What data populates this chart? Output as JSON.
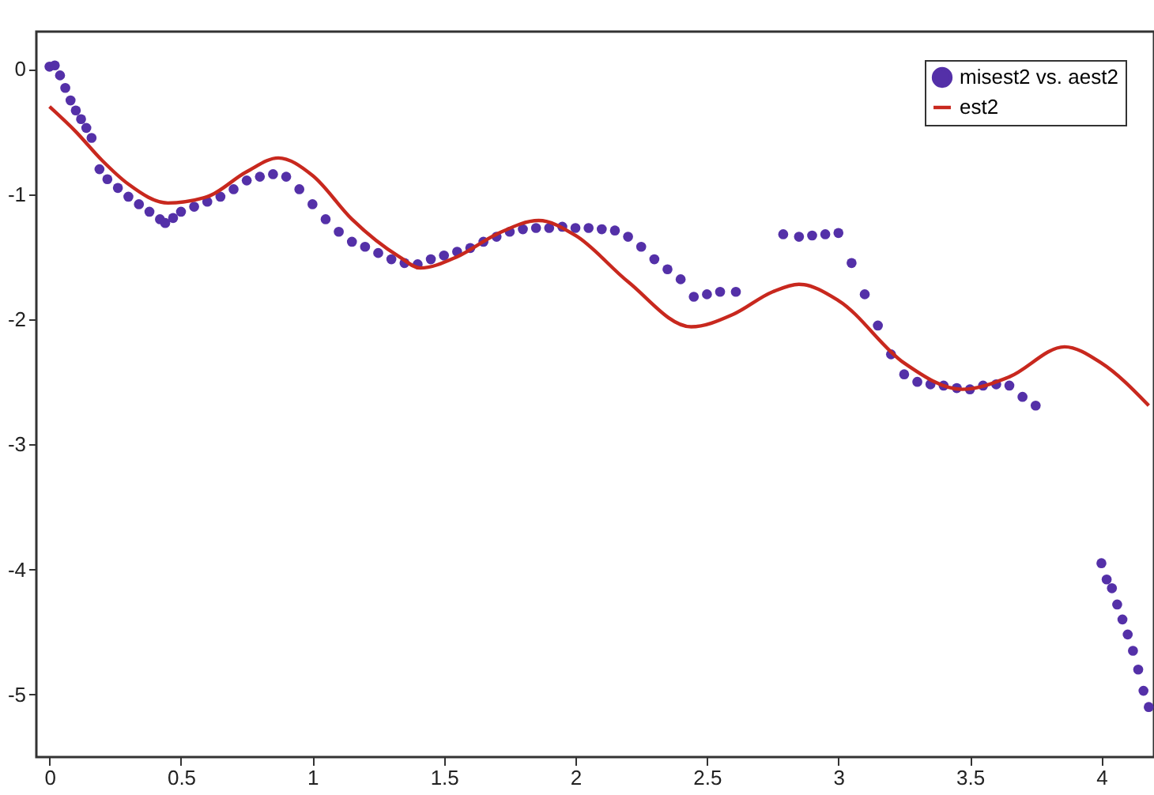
{
  "chart_data": {
    "type": "scatter",
    "xlim": [
      -0.05,
      4.2
    ],
    "ylim": [
      -5.5,
      0.3
    ],
    "xticks": [
      0,
      0.5,
      1,
      1.5,
      2,
      2.5,
      3,
      3.5,
      4
    ],
    "yticks": [
      0,
      -1,
      -2,
      -3,
      -4,
      -5
    ],
    "grid": false,
    "legend": "top right",
    "series": [
      {
        "name": "misest2 vs. aest2",
        "marker": "circle",
        "color": "#5430a8",
        "x": [
          0,
          0.02,
          0.04,
          0.06,
          0.08,
          0.1,
          0.12,
          0.14,
          0.16,
          0.19,
          0.22,
          0.26,
          0.3,
          0.34,
          0.38,
          0.42,
          0.44,
          0.47,
          0.5,
          0.55,
          0.6,
          0.65,
          0.7,
          0.75,
          0.8,
          0.85,
          0.9,
          0.95,
          1.0,
          1.05,
          1.1,
          1.15,
          1.2,
          1.25,
          1.3,
          1.35,
          1.4,
          1.45,
          1.5,
          1.55,
          1.6,
          1.65,
          1.7,
          1.75,
          1.8,
          1.85,
          1.9,
          1.95,
          2.0,
          2.05,
          2.1,
          2.15,
          2.2,
          2.25,
          2.3,
          2.35,
          2.4,
          2.45,
          2.5,
          2.55,
          2.61,
          2.79,
          2.85,
          2.9,
          2.95,
          3.0,
          3.05,
          3.1,
          3.15,
          3.2,
          3.25,
          3.3,
          3.35,
          3.4,
          3.45,
          3.5,
          3.55,
          3.6,
          3.65,
          3.7,
          3.75,
          4.0,
          4.02,
          4.04,
          4.06,
          4.08,
          4.1,
          4.12,
          4.14,
          4.16,
          4.18
        ],
        "values": [
          0.02,
          0.03,
          -0.05,
          -0.15,
          -0.25,
          -0.33,
          -0.4,
          -0.47,
          -0.55,
          -0.8,
          -0.88,
          -0.95,
          -1.02,
          -1.08,
          -1.14,
          -1.2,
          -1.23,
          -1.19,
          -1.14,
          -1.1,
          -1.06,
          -1.02,
          -0.96,
          -0.89,
          -0.86,
          -0.84,
          -0.86,
          -0.96,
          -1.08,
          -1.2,
          -1.3,
          -1.38,
          -1.42,
          -1.47,
          -1.52,
          -1.55,
          -1.56,
          -1.52,
          -1.49,
          -1.46,
          -1.43,
          -1.38,
          -1.34,
          -1.3,
          -1.28,
          -1.27,
          -1.27,
          -1.26,
          -1.27,
          -1.27,
          -1.28,
          -1.29,
          -1.34,
          -1.42,
          -1.52,
          -1.6,
          -1.68,
          -1.82,
          -1.8,
          -1.78,
          -1.78,
          -1.32,
          -1.34,
          -1.33,
          -1.32,
          -1.31,
          -1.55,
          -1.8,
          -2.05,
          -2.28,
          -2.44,
          -2.5,
          -2.52,
          -2.53,
          -2.55,
          -2.56,
          -2.53,
          -2.52,
          -2.53,
          -2.62,
          -2.69,
          -3.95,
          -4.08,
          -4.15,
          -4.28,
          -4.4,
          -4.52,
          -4.65,
          -4.8,
          -4.97,
          -5.1
        ]
      },
      {
        "name": "est2",
        "type": "line",
        "marker": "none",
        "color": "#c8281e",
        "x": [
          0,
          0.1,
          0.2,
          0.3,
          0.45,
          0.6,
          0.75,
          0.87,
          1.0,
          1.15,
          1.33,
          1.41,
          1.55,
          1.7,
          1.86,
          2.0,
          2.2,
          2.44,
          2.6,
          2.75,
          2.85,
          3.0,
          3.25,
          3.47,
          3.65,
          3.86,
          4.0,
          4.18
        ],
        "values": [
          -0.3,
          -0.5,
          -0.73,
          -0.92,
          -1.07,
          -1.02,
          -0.82,
          -0.71,
          -0.85,
          -1.2,
          -1.5,
          -1.59,
          -1.5,
          -1.32,
          -1.21,
          -1.33,
          -1.7,
          -2.06,
          -1.96,
          -1.78,
          -1.72,
          -1.85,
          -2.35,
          -2.56,
          -2.46,
          -2.22,
          -2.35,
          -2.69
        ]
      }
    ]
  }
}
